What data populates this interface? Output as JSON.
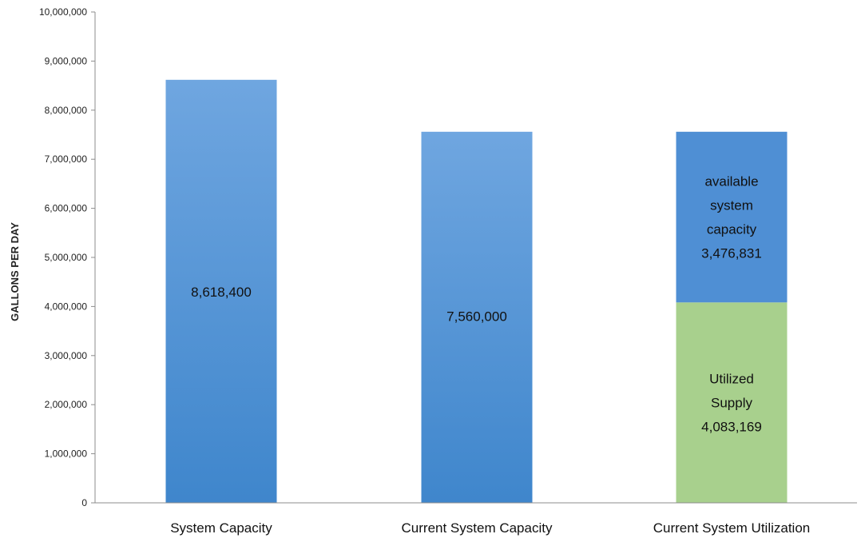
{
  "chart_data": {
    "type": "bar",
    "stacked": true,
    "ylabel": "GALLONS PER DAY",
    "ylim": [
      0,
      10000000
    ],
    "yticks": [
      {
        "value": 0,
        "label": "0"
      },
      {
        "value": 1000000,
        "label": "1,000,000"
      },
      {
        "value": 2000000,
        "label": "2,000,000"
      },
      {
        "value": 3000000,
        "label": "3,000,000"
      },
      {
        "value": 4000000,
        "label": "4,000,000"
      },
      {
        "value": 5000000,
        "label": "5,000,000"
      },
      {
        "value": 6000000,
        "label": "6,000,000"
      },
      {
        "value": 7000000,
        "label": "7,000,000"
      },
      {
        "value": 8000000,
        "label": "8,000,000"
      },
      {
        "value": 9000000,
        "label": "9,000,000"
      },
      {
        "value": 10000000,
        "label": "10,000,000"
      }
    ],
    "grid": false,
    "categories": [
      "System Capacity",
      "Current System Capacity",
      "Current System Utilization"
    ],
    "bars": [
      {
        "category": "System Capacity",
        "segments": [
          {
            "value": 8618400,
            "label_lines": [
              "8,618,400"
            ],
            "color": "#4f8fd4"
          }
        ]
      },
      {
        "category": "Current System Capacity",
        "segments": [
          {
            "value": 7560000,
            "label_lines": [
              "7,560,000"
            ],
            "color": "#4f8fd4"
          }
        ]
      },
      {
        "category": "Current System Utilization",
        "segments": [
          {
            "value": 4083169,
            "label_lines": [
              "Utilized",
              "Supply",
              "4,083,169"
            ],
            "color": "#a8d08d"
          },
          {
            "value": 3476831,
            "label_lines": [
              "available",
              "system",
              "capacity",
              "3,476,831"
            ],
            "color": "#4f8fd4"
          }
        ]
      }
    ]
  }
}
